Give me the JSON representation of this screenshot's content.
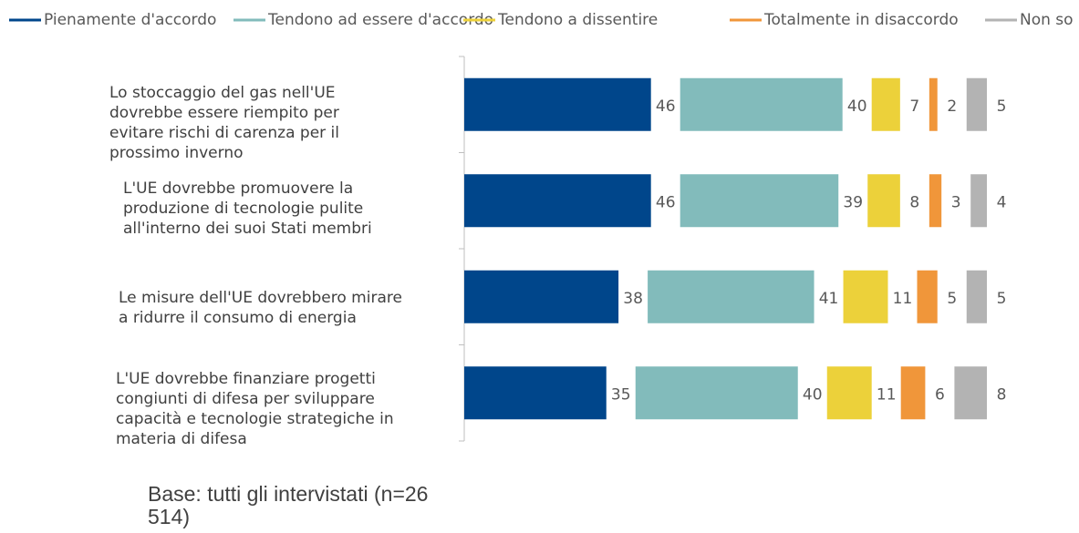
{
  "chart_data": {
    "type": "stacked_bar_horizontal",
    "categories": [
      "Lo stoccaggio del gas nell'UE dovrebbe essere riempito per evitare rischi di carenza per il prossimo inverno",
      "L'UE dovrebbe promuovere la produzione di tecnologie pulite all'interno dei suoi Stati membri",
      "Le misure dell'UE dovrebbero mirare a ridurre il consumo di energia",
      "L'UE dovrebbe finanziare progetti congiunti di difesa per sviluppare capacità e tecnologie strategiche in materia di difesa"
    ],
    "series": [
      {
        "name": "Pienamente d'accordo",
        "color": "#00468b",
        "values": [
          46,
          46,
          38,
          35
        ]
      },
      {
        "name": "Tendono ad essere d'accordo",
        "color": "#82bbbb",
        "values": [
          40,
          39,
          41,
          40
        ]
      },
      {
        "name": "Tendono a dissentire",
        "color": "#ecd13a",
        "values": [
          7,
          8,
          11,
          11
        ]
      },
      {
        "name": "Totalmente in disaccordo",
        "color": "#f0963a",
        "values": [
          2,
          3,
          5,
          6
        ]
      },
      {
        "name": "Non so",
        "color": "#b3b3b3",
        "values": [
          5,
          4,
          5,
          8
        ]
      }
    ],
    "legend": "top",
    "note": "Base: tutti gli intervistati (n=26 514)"
  }
}
